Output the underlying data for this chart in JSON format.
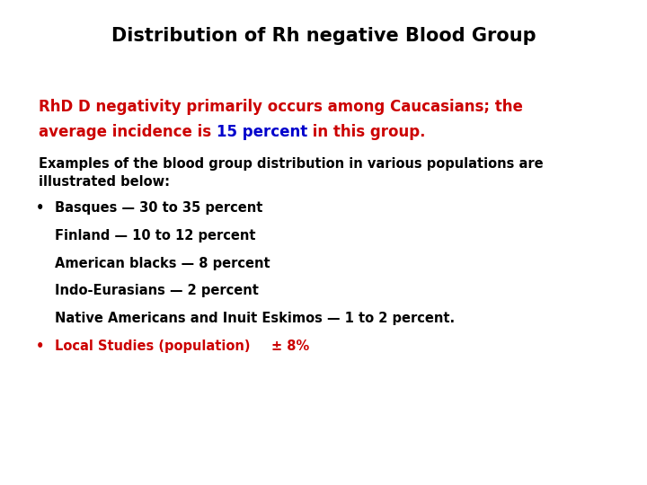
{
  "title": "Distribution of Rh negative Blood Group",
  "title_fontsize": 15,
  "title_fontweight": "bold",
  "bg_color": "#ffffff",
  "box_color": "#000000",
  "red_color": "#cc0000",
  "blue_color": "#0000cc",
  "black_color": "#000000",
  "heading_line1": "RhD D negativity primarily occurs among Caucasians; the",
  "heading_line2_p1": "average incidence is ",
  "heading_line2_p2": "15 percent",
  "heading_line2_p3": " in this group.",
  "body_intro_line1": "Examples of the blood group distribution in various populations are",
  "body_intro_line2": "illustrated below:",
  "item_bullet1": "•",
  "item1_text": "  Basques — 30 to 35 percent",
  "item2_text": "Finland — 10 to 12 percent",
  "item3_text": "American blacks — 8 percent",
  "item4_text": "Indo-Eurasians — 2 percent",
  "item5_text": "Native Americans and Inuit Eskimos — 1 to 2 percent.",
  "item_bullet2": "•",
  "item6_text": "  Local Studies (population)",
  "item6_suffix": "± 8%",
  "heading_fs": 12,
  "body_fs": 10.5,
  "item_fs": 10.5
}
